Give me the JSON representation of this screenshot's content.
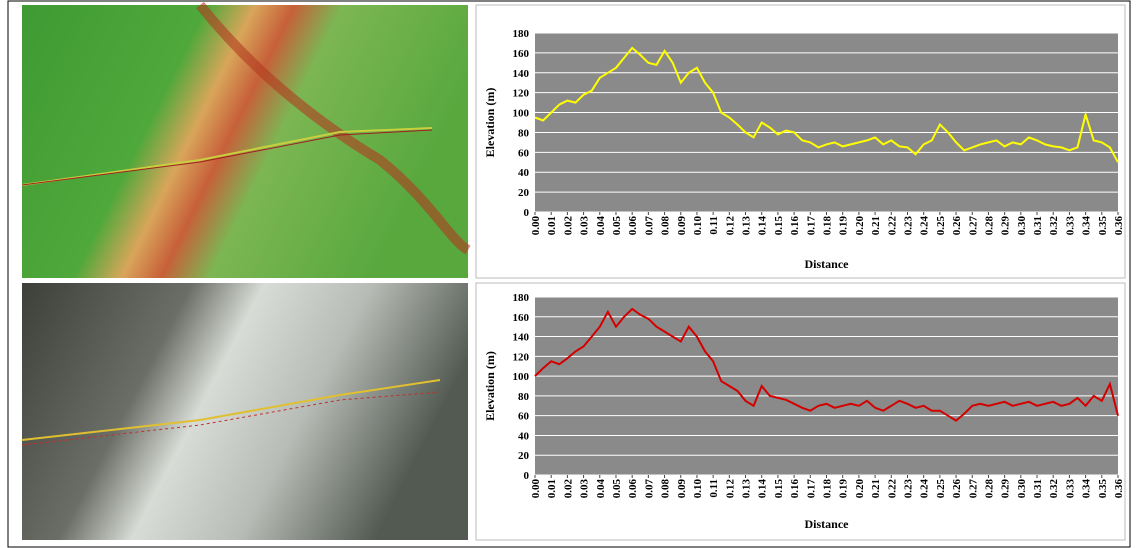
{
  "chart_data": [
    {
      "type": "line",
      "xlabel": "Distance",
      "ylabel": "Elevation (m)",
      "color": "#ffff00",
      "grid": true,
      "xlim": [
        0,
        0.36
      ],
      "ylim": [
        0,
        180
      ],
      "yticks": [
        0,
        20,
        40,
        60,
        80,
        100,
        120,
        140,
        160,
        180
      ],
      "xticks": [
        {
          "value": 0,
          "label": "0.00"
        },
        0.01,
        0.02,
        0.03,
        0.04,
        0.05,
        0.06,
        0.07,
        0.08,
        0.09,
        {
          "value": 0.1,
          "label": "0.10"
        },
        0.11,
        0.12,
        0.13,
        0.14,
        0.15,
        0.16,
        0.17,
        0.18,
        0.19,
        {
          "value": 0.2,
          "label": "0.20"
        },
        0.21,
        0.22,
        0.23,
        0.24,
        0.25,
        0.26,
        0.27,
        0.28,
        0.29,
        {
          "value": 0.3,
          "label": "0.30"
        },
        0.31,
        0.32,
        0.33,
        0.34,
        0.35,
        0.36
      ],
      "x": [
        0,
        0.005,
        0.01,
        0.015,
        0.02,
        0.025,
        0.03,
        0.035,
        0.04,
        0.045,
        0.05,
        0.055,
        0.06,
        0.065,
        0.07,
        0.075,
        0.08,
        0.085,
        0.09,
        0.095,
        0.1,
        0.105,
        0.11,
        0.115,
        0.12,
        0.125,
        0.13,
        0.135,
        0.14,
        0.145,
        0.15,
        0.155,
        0.16,
        0.165,
        0.17,
        0.175,
        0.18,
        0.185,
        0.19,
        0.195,
        0.2,
        0.205,
        0.21,
        0.215,
        0.22,
        0.225,
        0.23,
        0.235,
        0.24,
        0.245,
        0.25,
        0.255,
        0.26,
        0.265,
        0.27,
        0.275,
        0.28,
        0.285,
        0.29,
        0.295,
        0.3,
        0.305,
        0.31,
        0.315,
        0.32,
        0.325,
        0.33,
        0.335,
        0.34,
        0.345,
        0.35,
        0.355,
        0.36
      ],
      "values": [
        95,
        92,
        100,
        108,
        112,
        110,
        118,
        122,
        135,
        140,
        145,
        155,
        165,
        158,
        150,
        148,
        162,
        150,
        130,
        140,
        145,
        130,
        120,
        100,
        95,
        88,
        80,
        75,
        90,
        85,
        78,
        82,
        80,
        72,
        70,
        65,
        68,
        70,
        66,
        68,
        70,
        72,
        75,
        68,
        72,
        66,
        65,
        58,
        68,
        72,
        88,
        80,
        70,
        62,
        65,
        68,
        70,
        72,
        66,
        70,
        68,
        75,
        72,
        68,
        66,
        65,
        62,
        65,
        98,
        72,
        70,
        65,
        50
      ]
    },
    {
      "type": "line",
      "xlabel": "Distance",
      "ylabel": "Elevation (m)",
      "color": "#d40000",
      "grid": true,
      "xlim": [
        0,
        0.36
      ],
      "ylim": [
        0,
        180
      ],
      "yticks": [
        0,
        20,
        40,
        60,
        80,
        100,
        120,
        140,
        160,
        180
      ],
      "xticks": [
        {
          "value": 0,
          "label": "0.00"
        },
        0.01,
        0.02,
        0.03,
        0.04,
        0.05,
        0.06,
        0.07,
        0.08,
        0.09,
        {
          "value": 0.1,
          "label": "0.10"
        },
        0.11,
        0.12,
        0.13,
        0.14,
        0.15,
        0.16,
        0.17,
        0.18,
        0.19,
        {
          "value": 0.2,
          "label": "0.20"
        },
        0.21,
        0.22,
        0.23,
        0.24,
        0.25,
        0.26,
        0.27,
        0.28,
        0.29,
        {
          "value": 0.3,
          "label": "0.30"
        },
        0.31,
        0.32,
        0.33,
        0.34,
        0.35,
        0.36
      ],
      "x": [
        0,
        0.005,
        0.01,
        0.015,
        0.02,
        0.025,
        0.03,
        0.035,
        0.04,
        0.045,
        0.05,
        0.055,
        0.06,
        0.065,
        0.07,
        0.075,
        0.08,
        0.085,
        0.09,
        0.095,
        0.1,
        0.105,
        0.11,
        0.115,
        0.12,
        0.125,
        0.13,
        0.135,
        0.14,
        0.145,
        0.15,
        0.155,
        0.16,
        0.165,
        0.17,
        0.175,
        0.18,
        0.185,
        0.19,
        0.195,
        0.2,
        0.205,
        0.21,
        0.215,
        0.22,
        0.225,
        0.23,
        0.235,
        0.24,
        0.245,
        0.25,
        0.255,
        0.26,
        0.265,
        0.27,
        0.275,
        0.28,
        0.285,
        0.29,
        0.295,
        0.3,
        0.305,
        0.31,
        0.315,
        0.32,
        0.325,
        0.33,
        0.335,
        0.34,
        0.345,
        0.35,
        0.355,
        0.36
      ],
      "values": [
        100,
        108,
        115,
        112,
        118,
        125,
        130,
        140,
        150,
        165,
        150,
        160,
        168,
        162,
        158,
        150,
        145,
        140,
        135,
        150,
        140,
        125,
        115,
        95,
        90,
        85,
        75,
        70,
        90,
        80,
        78,
        76,
        72,
        68,
        65,
        70,
        72,
        68,
        70,
        72,
        70,
        75,
        68,
        65,
        70,
        75,
        72,
        68,
        70,
        65,
        65,
        60,
        55,
        62,
        70,
        72,
        70,
        72,
        74,
        70,
        72,
        74,
        70,
        72,
        74,
        70,
        72,
        78,
        70,
        80,
        75,
        92,
        60
      ]
    }
  ]
}
